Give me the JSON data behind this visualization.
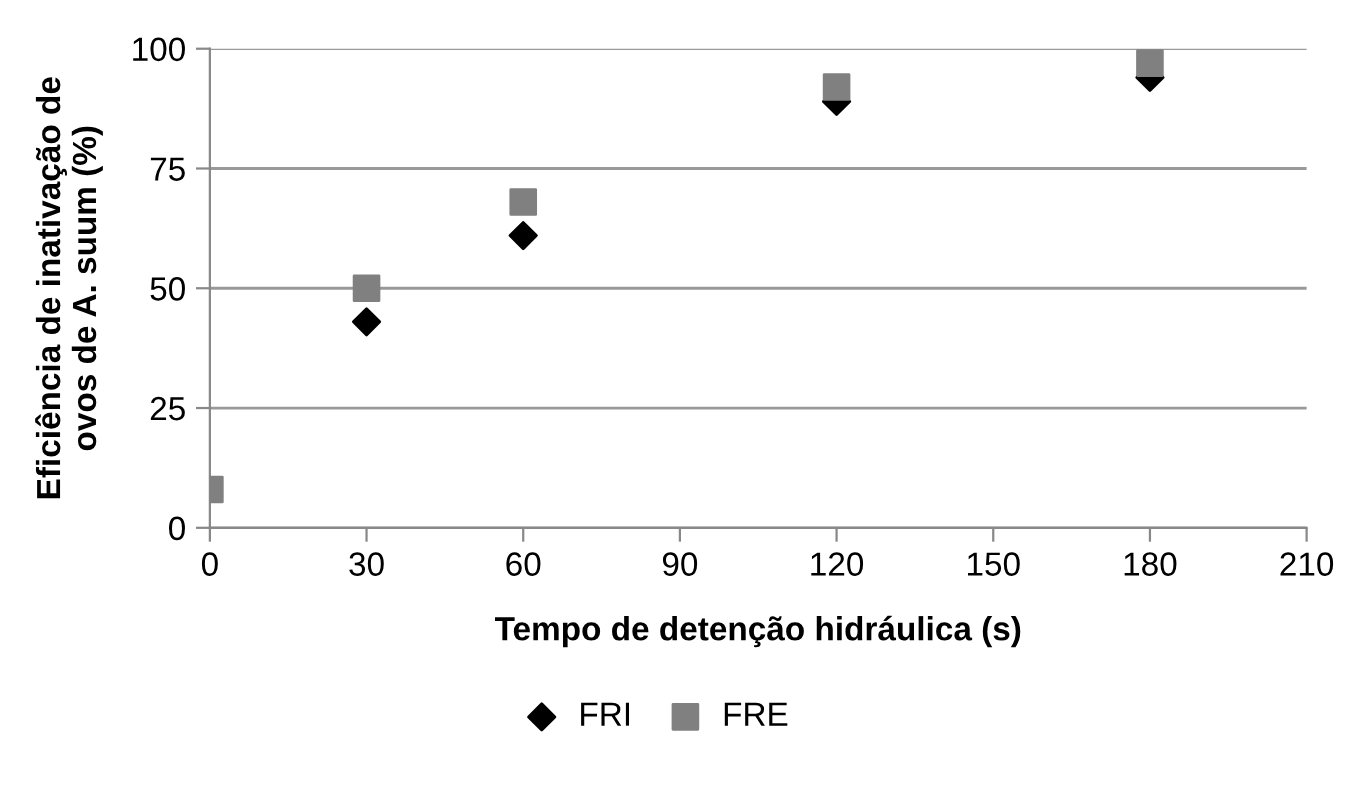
{
  "chart_data": {
    "type": "scatter",
    "xlabel": "Tempo de detenção hidráulica (s)",
    "ylabel": "Eficiência de inativação de\novos de A. suum (%)",
    "x": [
      0,
      30,
      60,
      120,
      180
    ],
    "series": [
      {
        "name": "FRI",
        "color": "#000000",
        "marker": "diamond",
        "values": [
          null,
          43,
          61,
          89,
          94
        ]
      },
      {
        "name": "FRE",
        "color": "#808080",
        "marker": "square",
        "values": [
          8,
          50,
          68,
          92,
          97
        ]
      }
    ],
    "xlim": [
      0,
      210
    ],
    "xticks": [
      0,
      30,
      60,
      90,
      120,
      150,
      180,
      210
    ],
    "ylim": [
      0,
      100
    ],
    "yticks": [
      0,
      25,
      50,
      75,
      100
    ],
    "grid": "y",
    "legend": "bottom"
  }
}
